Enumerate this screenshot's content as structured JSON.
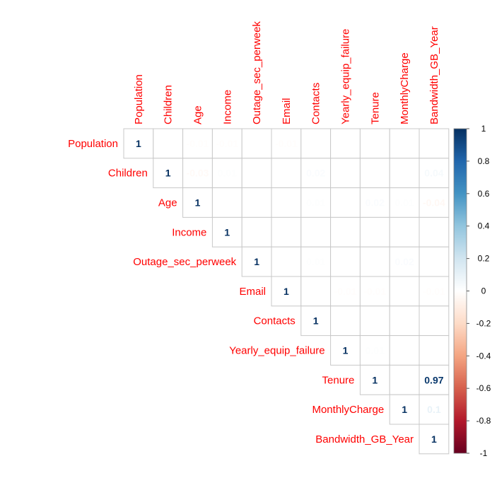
{
  "chart_data": {
    "type": "heatmap",
    "subtype": "correlation-matrix-upper",
    "variables": [
      "Population",
      "Children",
      "Age",
      "Income",
      "Outage_sec_perweek",
      "Email",
      "Contacts",
      "Yearly_equip_failure",
      "Tenure",
      "MonthlyCharge",
      "Bandwidth_GB_Year"
    ],
    "cells": [
      {
        "row": 0,
        "col": 0,
        "value": 1,
        "label": "1"
      },
      {
        "row": 0,
        "col": 1,
        "value": 0,
        "label": ""
      },
      {
        "row": 0,
        "col": 2,
        "value": -0.01,
        "label": "-0.01"
      },
      {
        "row": 0,
        "col": 3,
        "value": -0.01,
        "label": "-0.01"
      },
      {
        "row": 0,
        "col": 4,
        "value": 0,
        "label": ""
      },
      {
        "row": 0,
        "col": 5,
        "value": -0.01,
        "label": "-0.01"
      },
      {
        "row": 0,
        "col": 6,
        "value": 0,
        "label": ""
      },
      {
        "row": 0,
        "col": 7,
        "value": 0,
        "label": ""
      },
      {
        "row": 0,
        "col": 8,
        "value": 0,
        "label": ""
      },
      {
        "row": 0,
        "col": 9,
        "value": 0,
        "label": ""
      },
      {
        "row": 0,
        "col": 10,
        "value": 0,
        "label": ""
      },
      {
        "row": 1,
        "col": 1,
        "value": 1,
        "label": "1"
      },
      {
        "row": 1,
        "col": 2,
        "value": -0.03,
        "label": "-0.03"
      },
      {
        "row": 1,
        "col": 3,
        "value": 0.01,
        "label": "0.01"
      },
      {
        "row": 1,
        "col": 4,
        "value": 0,
        "label": ""
      },
      {
        "row": 1,
        "col": 5,
        "value": 0,
        "label": ""
      },
      {
        "row": 1,
        "col": 6,
        "value": 0.02,
        "label": "0.02"
      },
      {
        "row": 1,
        "col": 7,
        "value": 0,
        "label": ""
      },
      {
        "row": 1,
        "col": 8,
        "value": 0,
        "label": ""
      },
      {
        "row": 1,
        "col": 9,
        "value": 0,
        "label": ""
      },
      {
        "row": 1,
        "col": 10,
        "value": 0.04,
        "label": "0.04"
      },
      {
        "row": 2,
        "col": 2,
        "value": 1,
        "label": "1"
      },
      {
        "row": 2,
        "col": 3,
        "value": 0,
        "label": ""
      },
      {
        "row": 2,
        "col": 4,
        "value": 0,
        "label": ""
      },
      {
        "row": 2,
        "col": 5,
        "value": 0,
        "label": ""
      },
      {
        "row": 2,
        "col": 6,
        "value": 0.01,
        "label": "0.01"
      },
      {
        "row": 2,
        "col": 7,
        "value": 0,
        "label": ""
      },
      {
        "row": 2,
        "col": 8,
        "value": 0.02,
        "label": "0.02"
      },
      {
        "row": 2,
        "col": 9,
        "value": 0.01,
        "label": "0.01"
      },
      {
        "row": 2,
        "col": 10,
        "value": -0.04,
        "label": "-0.04"
      },
      {
        "row": 3,
        "col": 3,
        "value": 1,
        "label": "1"
      },
      {
        "row": 3,
        "col": 4,
        "value": 0,
        "label": ""
      },
      {
        "row": 3,
        "col": 5,
        "value": 0,
        "label": ""
      },
      {
        "row": 3,
        "col": 6,
        "value": 0,
        "label": ""
      },
      {
        "row": 3,
        "col": 7,
        "value": 0,
        "label": ""
      },
      {
        "row": 3,
        "col": 8,
        "value": 0,
        "label": ""
      },
      {
        "row": 3,
        "col": 9,
        "value": 0,
        "label": ""
      },
      {
        "row": 3,
        "col": 10,
        "value": 0,
        "label": ""
      },
      {
        "row": 4,
        "col": 4,
        "value": 1,
        "label": "1"
      },
      {
        "row": 4,
        "col": 5,
        "value": 0,
        "label": ""
      },
      {
        "row": 4,
        "col": 6,
        "value": 0.01,
        "label": "0.01"
      },
      {
        "row": 4,
        "col": 7,
        "value": 0,
        "label": ""
      },
      {
        "row": 4,
        "col": 8,
        "value": 0,
        "label": ""
      },
      {
        "row": 4,
        "col": 9,
        "value": 0.02,
        "label": "0.02"
      },
      {
        "row": 4,
        "col": 10,
        "value": 0,
        "label": ""
      },
      {
        "row": 5,
        "col": 5,
        "value": 1,
        "label": "1"
      },
      {
        "row": 5,
        "col": 6,
        "value": 0,
        "label": ""
      },
      {
        "row": 5,
        "col": 7,
        "value": -0.01,
        "label": "-0.01"
      },
      {
        "row": 5,
        "col": 8,
        "value": -0.01,
        "label": "-0.01"
      },
      {
        "row": 5,
        "col": 9,
        "value": 0,
        "label": ""
      },
      {
        "row": 5,
        "col": 10,
        "value": -0.01,
        "label": "-0.01"
      },
      {
        "row": 6,
        "col": 6,
        "value": 1,
        "label": "1"
      },
      {
        "row": 6,
        "col": 7,
        "value": 0,
        "label": ""
      },
      {
        "row": 6,
        "col": 8,
        "value": 0,
        "label": ""
      },
      {
        "row": 6,
        "col": 9,
        "value": 0,
        "label": ""
      },
      {
        "row": 6,
        "col": 10,
        "value": 0,
        "label": ""
      },
      {
        "row": 7,
        "col": 7,
        "value": 1,
        "label": "1"
      },
      {
        "row": 7,
        "col": 8,
        "value": 0.01,
        "label": "0.01"
      },
      {
        "row": 7,
        "col": 9,
        "value": 0,
        "label": ""
      },
      {
        "row": 7,
        "col": 10,
        "value": 0,
        "label": ""
      },
      {
        "row": 8,
        "col": 8,
        "value": 1,
        "label": "1"
      },
      {
        "row": 8,
        "col": 9,
        "value": 0,
        "label": ""
      },
      {
        "row": 8,
        "col": 10,
        "value": 0.97,
        "label": "0.97"
      },
      {
        "row": 9,
        "col": 9,
        "value": 1,
        "label": "1"
      },
      {
        "row": 9,
        "col": 10,
        "value": 0.1,
        "label": "0.1"
      },
      {
        "row": 10,
        "col": 10,
        "value": 1,
        "label": "1"
      }
    ],
    "colorbar": {
      "range": [
        -1,
        1
      ],
      "ticks": [
        "1",
        "0.8",
        "0.6",
        "0.4",
        "0.2",
        "0",
        "-0.2",
        "-0.4",
        "-0.6",
        "-0.8",
        "-1"
      ],
      "colors": [
        "#67001F",
        "#B2182B",
        "#D6604D",
        "#F4A582",
        "#FDDBC7",
        "#FFFFFF",
        "#D1E5F0",
        "#92C5DE",
        "#4393C3",
        "#2166AC",
        "#053061"
      ]
    },
    "label_color": "#FF0000",
    "grid_color": "#C8C8C8"
  }
}
